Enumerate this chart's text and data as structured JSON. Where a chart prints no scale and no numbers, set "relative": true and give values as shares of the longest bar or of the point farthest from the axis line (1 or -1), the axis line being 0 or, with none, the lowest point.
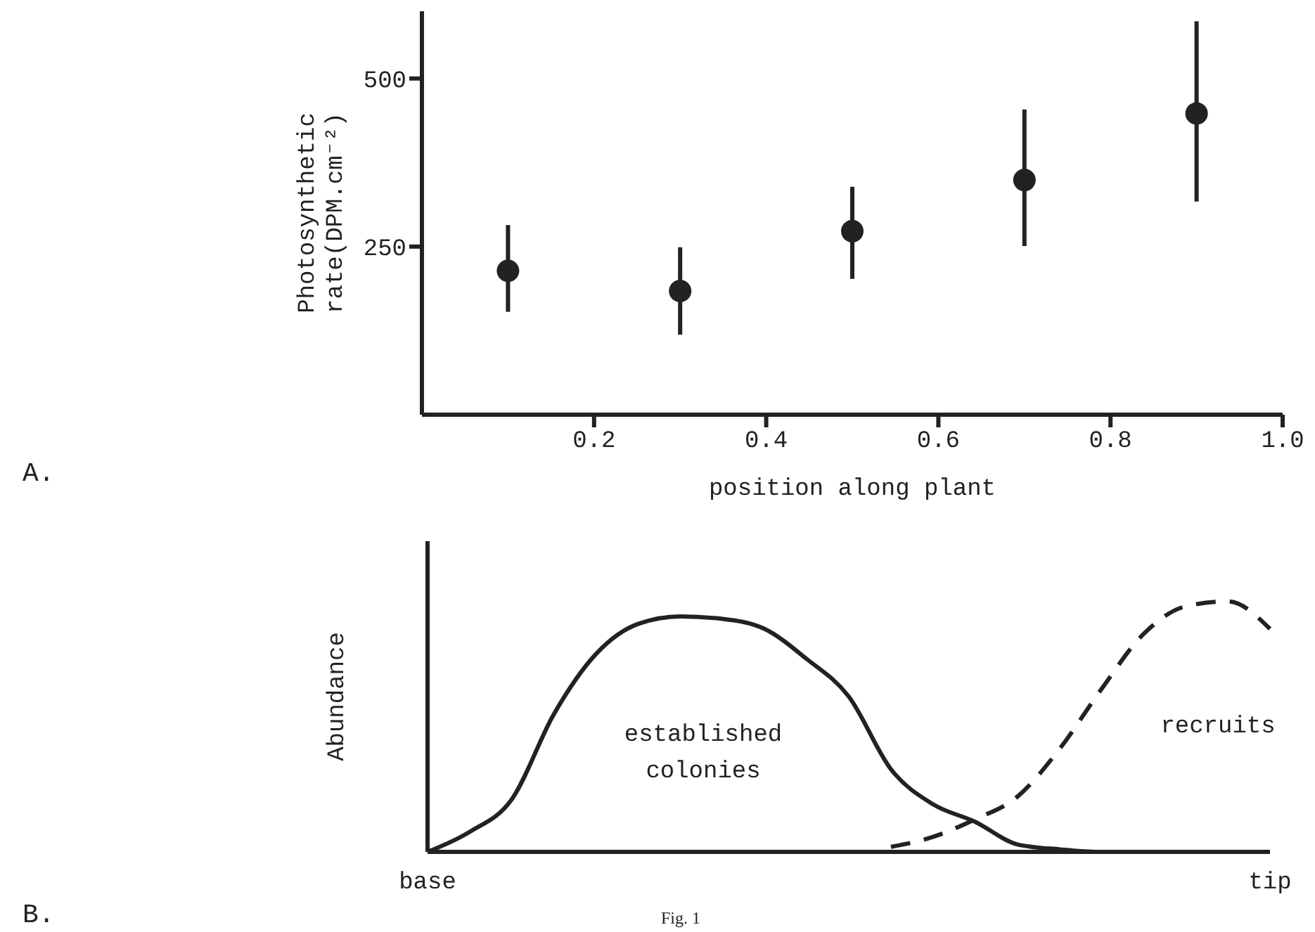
{
  "chart_data": [
    {
      "type": "scatter",
      "annotations": [
        "A."
      ],
      "xlabel": "position along plant",
      "ylabel": "Photosynthetic rate(DPM.cm⁻²)",
      "x": [
        0.1,
        0.3,
        0.5,
        0.7,
        0.9
      ],
      "values": [
        214,
        184,
        273,
        349,
        448
      ],
      "errors": [
        [
          153,
          282
        ],
        [
          119,
          249
        ],
        [
          202,
          339
        ],
        [
          251,
          454
        ],
        [
          317,
          585
        ]
      ],
      "color": "#222222",
      "xlim": [
        0,
        1
      ],
      "xticks": [
        0.2,
        0.4,
        0.6,
        0.8,
        {
          "value": 1,
          "label": "1.0"
        }
      ],
      "ylim": [
        0,
        600
      ],
      "yticks": [
        250,
        500
      ],
      "marker": "circle",
      "grid": false,
      "legend": false
    },
    {
      "type": "line",
      "ylabel": "Abundance",
      "relative": true,
      "categories": [
        "base",
        null,
        null,
        null,
        null,
        null,
        null,
        null,
        null,
        null,
        null,
        null,
        null,
        null,
        null,
        null,
        null,
        null,
        null,
        null,
        "tip"
      ],
      "series": [
        {
          "name": "established colonies",
          "color": "#222222",
          "line_style": "solid",
          "values": [
            0,
            0.08,
            0.21,
            0.55,
            0.79,
            0.91,
            0.94,
            0.93,
            0.89,
            0.77,
            0.62,
            0.33,
            0.19,
            0.12,
            0.03,
            0.01,
            0,
            0,
            0,
            0,
            0
          ]
        },
        {
          "name": "recruits",
          "color": "#222222",
          "line_style": "dashed",
          "values": [
            null,
            null,
            null,
            null,
            null,
            null,
            null,
            null,
            null,
            null,
            null,
            0.02,
            0.06,
            0.13,
            0.22,
            0.41,
            0.65,
            0.87,
            0.98,
            1,
            0.89
          ]
        }
      ],
      "marker": "none",
      "annotations": [
        "B.",
        "Fig. 1"
      ],
      "grid": false,
      "legend": false
    }
  ]
}
